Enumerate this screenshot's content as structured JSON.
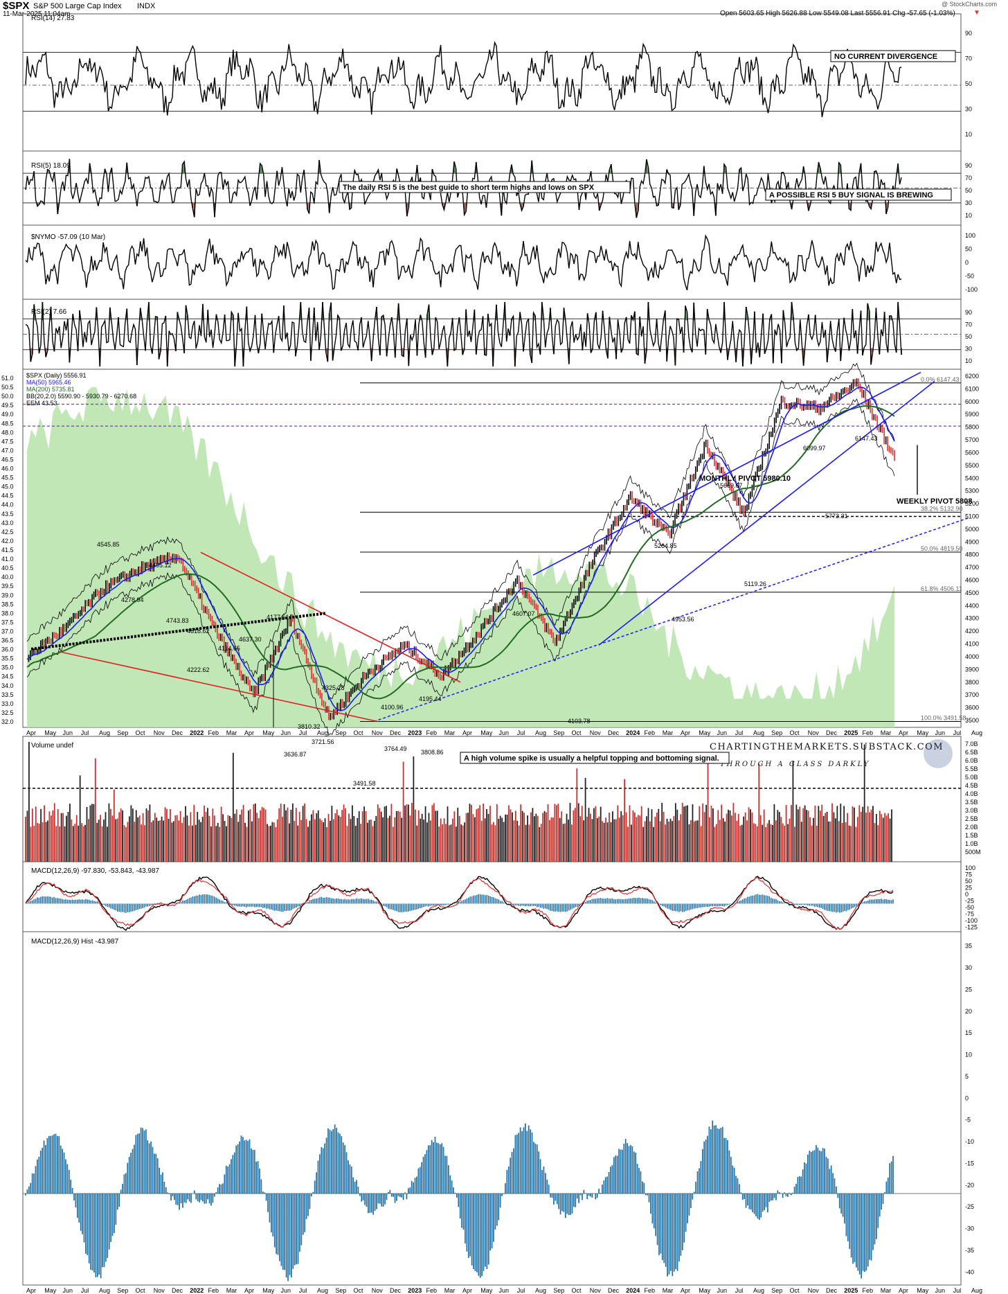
{
  "header": {
    "symbol": "$SPX",
    "name": "S&P 500 Large Cap Index",
    "exchange": "INDX",
    "timestamp": "11-Mar-2025 11:04am",
    "ohlc": "Open 5603.65  High 5626.88  Low 5549.08  Last 5556.91  Chg -57.65 (-1.03%)",
    "chg_arrow": "▼",
    "copyright": "@ StockCharts.com"
  },
  "colors": {
    "up_candle": "#000000",
    "down_candle": "#e03030",
    "ma50": "#1a1aff",
    "ma200": "#1f6b1f",
    "eem_fill": "#b5e3a8",
    "trend_blue": "#1a1aff",
    "trend_red": "#e02020",
    "pivot_purple": "#8a2be2",
    "hist": "#1c6ea4"
  },
  "x_axis": {
    "top_labels": [
      "Apr",
      "May",
      "Jun",
      "Jul",
      "Aug",
      "Sep",
      "Oct",
      "Nov",
      "Dec",
      "2022",
      "Feb",
      "Mar",
      "Apr",
      "May",
      "Jun",
      "Jul",
      "Aug",
      "Sep",
      "Oct",
      "Nov",
      "Dec",
      "2023",
      "Feb",
      "Mar",
      "Apr",
      "May",
      "Jun",
      "Jul",
      "Aug",
      "Sep",
      "Oct",
      "Nov",
      "Dec",
      "2024",
      "Feb",
      "Mar",
      "Apr",
      "May",
      "Jun",
      "Jul",
      "Aug",
      "Sep",
      "Oct",
      "Nov",
      "Dec",
      "2025",
      "Feb",
      "Mar",
      "Apr",
      "May",
      "Jun",
      "Jul",
      "Aug"
    ],
    "bottom_labels": [
      "Apr",
      "May",
      "Jun",
      "Jul",
      "Aug",
      "Sep",
      "Oct",
      "Nov",
      "Dec",
      "2022",
      "Feb",
      "Mar",
      "Apr",
      "May",
      "Jun",
      "Jul",
      "Aug",
      "Sep",
      "Oct",
      "Nov",
      "Dec",
      "2023",
      "Feb",
      "Mar",
      "Apr",
      "May",
      "Jun",
      "Jul",
      "Aug",
      "Sep",
      "Oct",
      "Nov",
      "Dec",
      "2024",
      "Feb",
      "Mar",
      "Apr",
      "May",
      "Jun",
      "Jul",
      "Aug",
      "Sep",
      "Oct",
      "Nov",
      "Dec",
      "2025",
      "Feb",
      "Mar",
      "Apr",
      "May",
      "Jun",
      "Jul",
      "Aug"
    ]
  },
  "panels": {
    "rsi14": {
      "title": "RSI(14) 27.83",
      "ticks": [
        "90",
        "70",
        "50",
        "30",
        "10"
      ],
      "note": "NO CURRENT DIVERGENCE"
    },
    "rsi5": {
      "title": "RSI(5) 18.09",
      "ticks": [
        "90",
        "70",
        "50",
        "30",
        "10"
      ],
      "note1": "The daily RSI 5 is the best guide to short term highs and lows on SPX",
      "note2": "A POSSIBLE RSI 5 BUY SIGNAL IS BREWING"
    },
    "nymo": {
      "title": "$NYMO -57.09 (10 Mar)",
      "ticks": [
        "100",
        "50",
        "0",
        "-50",
        "-100"
      ]
    },
    "rsi2": {
      "title": "RSI(2) 7.66",
      "ticks": [
        "90",
        "70",
        "50",
        "30",
        "10"
      ]
    },
    "price": {
      "legend": [
        "$SPX (Daily) 5556.91",
        "MA(50) 5965.46",
        "MA(200) 5735.81",
        "BB(20,2.0) 5590.90 - 5930.79 - 6270.68",
        "EEM 43.53"
      ],
      "left_ticks": [
        "51.0",
        "50.5",
        "50.0",
        "49.5",
        "49.0",
        "48.5",
        "48.0",
        "47.5",
        "47.0",
        "46.5",
        "46.0",
        "45.5",
        "45.0",
        "44.5",
        "44.0",
        "43.5",
        "43.0",
        "42.5",
        "42.0",
        "41.5",
        "41.0",
        "40.5",
        "40.0",
        "39.5",
        "39.0",
        "38.5",
        "38.0",
        "37.5",
        "37.0",
        "36.5",
        "36.0",
        "35.5",
        "35.0",
        "34.5",
        "34.0",
        "33.5",
        "33.0",
        "32.5",
        "32.0"
      ],
      "right_ticks": [
        "6200",
        "6100",
        "6000",
        "5900",
        "5800",
        "5700",
        "5600",
        "5500",
        "5400",
        "5300",
        "5200",
        "5100",
        "5000",
        "4900",
        "4800",
        "4700",
        "4600",
        "4500",
        "4400",
        "4300",
        "4200",
        "4100",
        "4000",
        "3900",
        "3800",
        "3700",
        "3600",
        "3500"
      ],
      "fib_labels": [
        "0.0% 6147.43",
        "38.2% 5132.90",
        "50.0% 4819.50",
        "61.8% 4506.11",
        "100.0% 3491.58"
      ],
      "notes": {
        "monthly": "MONTHLY PIVOT 5980.10",
        "weekly": "WEEKLY PIVOT 5808"
      },
      "price_labels": [
        "4818.62",
        "4743.83",
        "4545.85",
        "4495.12",
        "4278.94",
        "4637.30",
        "4222.62",
        "4114.65",
        "4177.51",
        "4325.28",
        "3810.32",
        "3721.56",
        "3636.87",
        "3491.58",
        "4100.96",
        "4195.44",
        "3764.49",
        "3808.86",
        "4607.07",
        "4103.78",
        "5264.85",
        "4953.56",
        "5669.67",
        "5119.26",
        "6099.97",
        "6147.43",
        "5773.31"
      ],
      "brand1": "CHARTINGTHEMARKETS.SUBSTACK.COM",
      "brand2": "THROUGH A GLASS DARKLY"
    },
    "volume": {
      "title": "Volume undef",
      "ticks": [
        "7.0B",
        "6.5B",
        "6.0B",
        "5.5B",
        "5.0B",
        "4.5B",
        "4.0B",
        "3.5B",
        "3.0B",
        "2.5B",
        "2.0B",
        "1.5B",
        "1.0B",
        "500M"
      ],
      "note": "A high volume spike is usually a helpful topping and bottoming signal."
    },
    "macd": {
      "title": "MACD(12,26,9) -97.830, -53.843, -43.987",
      "ticks": [
        "100",
        "75",
        "50",
        "25",
        "0",
        "-25",
        "-50",
        "-75",
        "-100",
        "-125"
      ]
    },
    "hist": {
      "title": "MACD(12,26,9) Hist -43.987",
      "ticks": [
        "35",
        "30",
        "25",
        "20",
        "15",
        "10",
        "5",
        "0",
        "-5",
        "-10",
        "-15",
        "-20",
        "-25",
        "-30",
        "-35",
        "-40"
      ]
    }
  },
  "chart_data": {
    "type": "line",
    "title": "$SPX S&P 500 Large Cap Index",
    "x": [
      "2021-04",
      "2021-06",
      "2021-09",
      "2021-11",
      "2022-01",
      "2022-03",
      "2022-06",
      "2022-08",
      "2022-10",
      "2022-12",
      "2023-02",
      "2023-03",
      "2023-05",
      "2023-07",
      "2023-10",
      "2023-12",
      "2024-03",
      "2024-04",
      "2024-07",
      "2024-08",
      "2024-11",
      "2025-01",
      "2025-02",
      "2025-03"
    ],
    "series": [
      {
        "name": "$SPX (Daily) 5556.91",
        "values": [
          4000,
          4220,
          4530,
          4690,
          4790,
          4200,
          3700,
          4300,
          3520,
          3860,
          4090,
          3850,
          4200,
          4600,
          4110,
          4750,
          5250,
          4950,
          5670,
          5120,
          6000,
          5950,
          6147,
          5557
        ]
      }
    ],
    "ylim": [
      3500,
      6200
    ],
    "grid": false,
    "annotations": [
      "MONTHLY PIVOT 5980.10",
      "WEEKLY PIVOT 5808"
    ]
  }
}
